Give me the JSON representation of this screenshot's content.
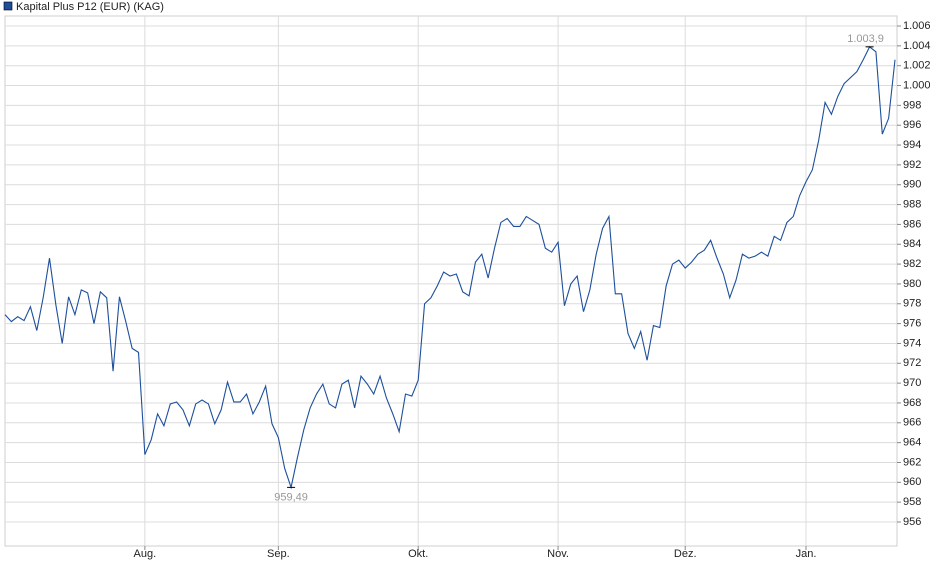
{
  "chart_data": {
    "type": "line",
    "series": [
      {
        "name": "Kapital Plus P12 (EUR) (KAG)",
        "color": "#1d4f9c",
        "values": [
          976.9,
          976.2,
          976.7,
          976.3,
          977.7,
          975.3,
          978.6,
          982.6,
          977.9,
          974.0,
          978.7,
          976.9,
          979.4,
          979.1,
          976.0,
          979.2,
          978.6,
          971.2,
          978.7,
          976.2,
          973.5,
          973.1,
          962.8,
          964.3,
          966.9,
          965.7,
          967.9,
          968.1,
          967.3,
          965.7,
          967.9,
          968.3,
          967.9,
          965.9,
          967.3,
          970.1,
          968.1,
          968.1,
          968.9,
          966.9,
          968.1,
          969.7,
          965.9,
          964.5,
          961.4,
          959.49,
          962.5,
          965.3,
          967.5,
          968.9,
          969.9,
          967.9,
          967.5,
          969.9,
          970.3,
          967.5,
          970.7,
          969.9,
          968.9,
          970.7,
          968.5,
          966.9,
          965.1,
          968.9,
          968.7,
          970.3,
          978.0,
          978.6,
          979.8,
          981.2,
          980.8,
          981.0,
          979.2,
          978.8,
          982.2,
          983.0,
          980.6,
          983.6,
          986.2,
          986.6,
          985.8,
          985.8,
          986.8,
          986.4,
          986.0,
          983.6,
          983.2,
          984.2,
          977.8,
          980.0,
          980.8,
          977.2,
          979.4,
          983.0,
          985.6,
          986.8,
          979.0,
          979.0,
          975.0,
          973.5,
          975.2,
          972.3,
          975.8,
          975.6,
          979.8,
          982.0,
          982.4,
          981.6,
          982.2,
          983.0,
          983.4,
          984.4,
          982.6,
          981.0,
          978.6,
          980.4,
          983.0,
          982.6,
          982.8,
          983.2,
          982.8,
          984.8,
          984.4,
          986.2,
          986.8,
          988.9,
          990.3,
          991.5,
          994.5,
          998.3,
          997.1,
          998.9,
          1000.2,
          1000.8,
          1001.4,
          1002.6,
          1003.9,
          1003.4,
          995.1,
          996.7,
          1002.6
        ]
      }
    ],
    "categories": [
      null,
      null,
      null,
      null,
      null,
      null,
      null,
      null,
      null,
      null,
      null,
      null,
      null,
      null,
      null,
      null,
      null,
      null,
      null,
      null,
      null,
      null,
      "Aug.",
      null,
      null,
      null,
      null,
      null,
      null,
      null,
      null,
      null,
      null,
      null,
      null,
      null,
      null,
      null,
      null,
      null,
      null,
      null,
      null,
      "Sep.",
      null,
      null,
      null,
      null,
      null,
      null,
      null,
      null,
      null,
      null,
      null,
      null,
      null,
      null,
      null,
      null,
      null,
      null,
      null,
      null,
      null,
      "Okt.",
      null,
      null,
      null,
      null,
      null,
      null,
      null,
      null,
      null,
      null,
      null,
      null,
      null,
      null,
      null,
      null,
      null,
      null,
      null,
      null,
      null,
      "Nov.",
      null,
      null,
      null,
      null,
      null,
      null,
      null,
      null,
      null,
      null,
      null,
      null,
      null,
      null,
      null,
      null,
      null,
      null,
      null,
      "Dez.",
      null,
      null,
      null,
      null,
      null,
      null,
      null,
      null,
      null,
      null,
      null,
      null,
      null,
      null,
      null,
      null,
      null,
      null,
      "Jan.",
      null,
      null,
      null,
      null,
      null,
      null,
      null,
      null,
      null,
      null,
      null,
      null,
      null,
      null
    ],
    "max_label": "1.003,9",
    "min_label": "959,49",
    "ylim": [
      953.58,
      1007.01
    ],
    "yticks": [
      956,
      958,
      960,
      962,
      964,
      966,
      968,
      970,
      972,
      974,
      976,
      978,
      980,
      982,
      984,
      986,
      988,
      990,
      992,
      994,
      996,
      998,
      {
        "value": 1000,
        "label": "1.000"
      },
      {
        "value": 1002,
        "label": "1.002"
      },
      {
        "value": 1004,
        "label": "1.004"
      },
      {
        "value": 1006,
        "label": "1.006"
      }
    ],
    "grid": true
  }
}
